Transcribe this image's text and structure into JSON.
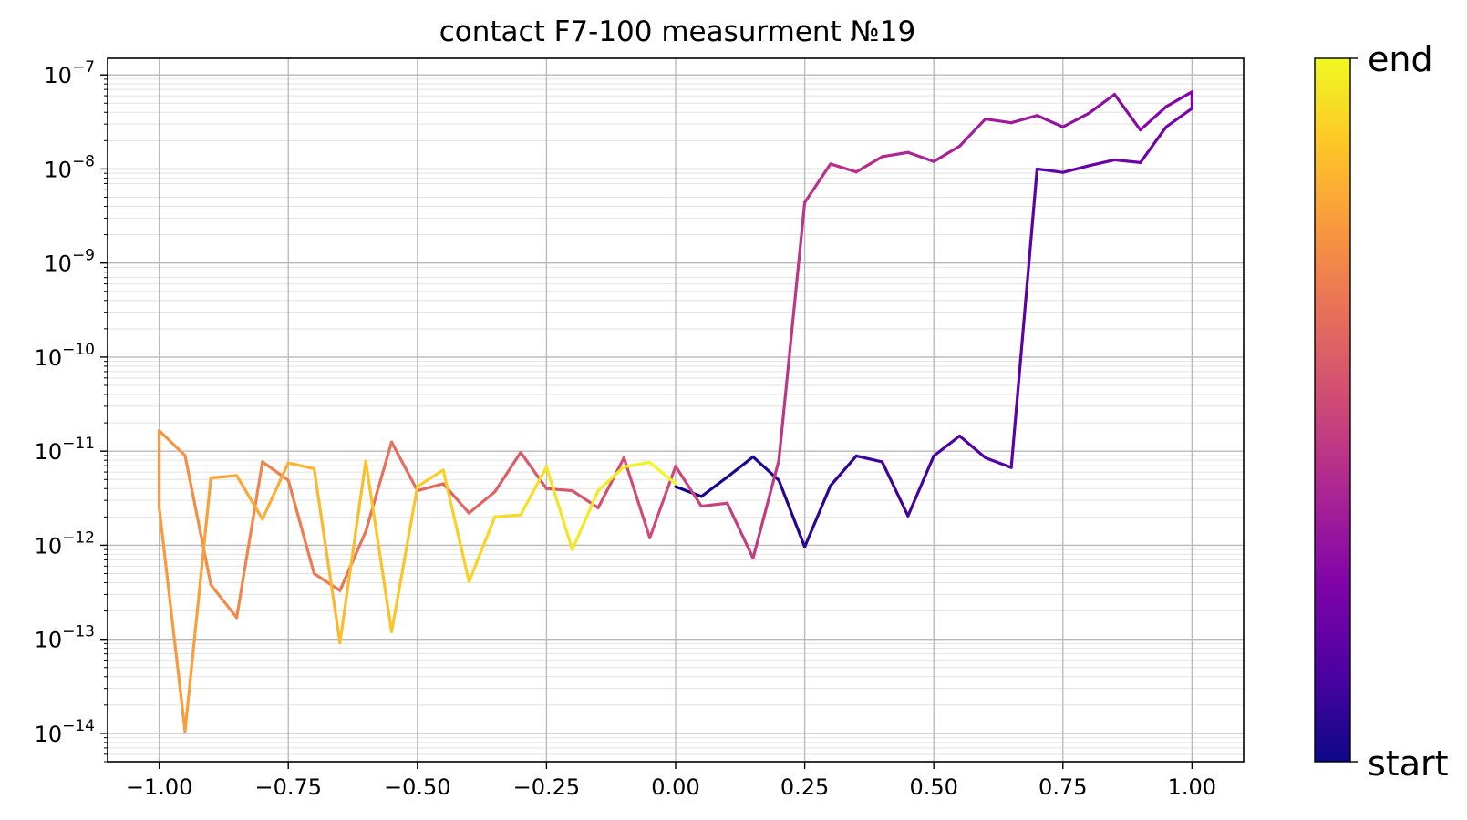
{
  "chart_data": {
    "type": "line",
    "title": "contact F7-100 measurment №19",
    "xlabel": "",
    "ylabel": "",
    "xlim": [
      -1.1,
      1.1
    ],
    "ylim": [
      5e-15,
      1.5e-07
    ],
    "yscale": "log",
    "grid": "major and minor",
    "x_ticks": [
      "−1.00",
      "−0.75",
      "−0.50",
      "−0.25",
      "0.00",
      "0.25",
      "0.50",
      "0.75",
      "1.00"
    ],
    "y_ticks": [
      {
        "base": "10",
        "exp": "−7"
      },
      {
        "base": "10",
        "exp": "−8"
      },
      {
        "base": "10",
        "exp": "−9"
      },
      {
        "base": "10",
        "exp": "−10"
      },
      {
        "base": "10",
        "exp": "−11"
      },
      {
        "base": "10",
        "exp": "−12"
      },
      {
        "base": "10",
        "exp": "−13"
      },
      {
        "base": "10",
        "exp": "−14"
      }
    ],
    "colormap": "plasma",
    "colorbar": {
      "start_label": "start",
      "end_label": "end"
    },
    "series": [
      {
        "x": [
          0.0,
          0.05,
          0.1,
          0.15,
          0.2,
          0.25,
          0.3,
          0.35,
          0.4,
          0.45,
          0.5,
          0.55,
          0.6,
          0.65,
          0.7,
          0.75,
          0.8,
          0.85,
          0.9,
          0.95,
          1.0,
          1.0,
          0.95,
          0.9,
          0.85,
          0.8,
          0.75,
          0.7,
          0.65,
          0.6,
          0.55,
          0.5,
          0.45,
          0.4,
          0.35,
          0.3,
          0.25,
          0.2,
          0.15,
          0.1,
          0.05,
          0.0,
          -0.05,
          -0.1,
          -0.15,
          -0.2,
          -0.25,
          -0.3,
          -0.35,
          -0.4,
          -0.45,
          -0.5,
          -0.55,
          -0.6,
          -0.65,
          -0.7,
          -0.75,
          -0.8,
          -0.85,
          -0.9,
          -0.95,
          -1.0,
          -1.0,
          -0.95,
          -0.9,
          -0.85,
          -0.8,
          -0.75,
          -0.7,
          -0.65,
          -0.6,
          -0.55,
          -0.5,
          -0.45,
          -0.4,
          -0.35,
          -0.3,
          -0.25,
          -0.2,
          -0.15,
          -0.1,
          -0.05,
          0.0
        ],
        "y": [
          4.2e-12,
          3.3e-12,
          5.3e-12,
          8.7e-12,
          4.9e-12,
          9.6e-13,
          4.3e-12,
          8.9e-12,
          7.7e-12,
          2.05e-12,
          8.9e-12,
          1.45e-11,
          8.5e-12,
          6.7e-12,
          1e-08,
          9.2e-09,
          1.08e-08,
          1.25e-08,
          1.17e-08,
          2.8e-08,
          4.4e-08,
          6.6e-08,
          4.6e-08,
          2.6e-08,
          6.2e-08,
          3.9e-08,
          2.8e-08,
          3.7e-08,
          3.1e-08,
          3.4e-08,
          1.75e-08,
          1.2e-08,
          1.5e-08,
          1.35e-08,
          9.3e-09,
          1.13e-08,
          4.4e-09,
          8e-12,
          7.3e-13,
          2.8e-12,
          2.6e-12,
          6.9e-12,
          1.2e-12,
          8.5e-12,
          2.5e-12,
          3.8e-12,
          4e-12,
          9.7e-12,
          3.7e-12,
          2.2e-12,
          4.5e-12,
          3.8e-12,
          1.25e-11,
          1.4e-12,
          3.3e-13,
          5e-13,
          4.9e-12,
          7.7e-12,
          1.7e-13,
          3.8e-13,
          9e-12,
          1.65e-11,
          2.5e-12,
          1.05e-14,
          5.2e-12,
          5.5e-12,
          1.9e-12,
          7.5e-12,
          6.5e-12,
          9.2e-14,
          7.8e-12,
          1.2e-13,
          4.2e-12,
          6.3e-12,
          4.1e-13,
          2e-12,
          2.1e-12,
          6.8e-12,
          9e-13,
          3.8e-12,
          6.8e-12,
          7.6e-12,
          4.5e-12
        ]
      }
    ]
  }
}
